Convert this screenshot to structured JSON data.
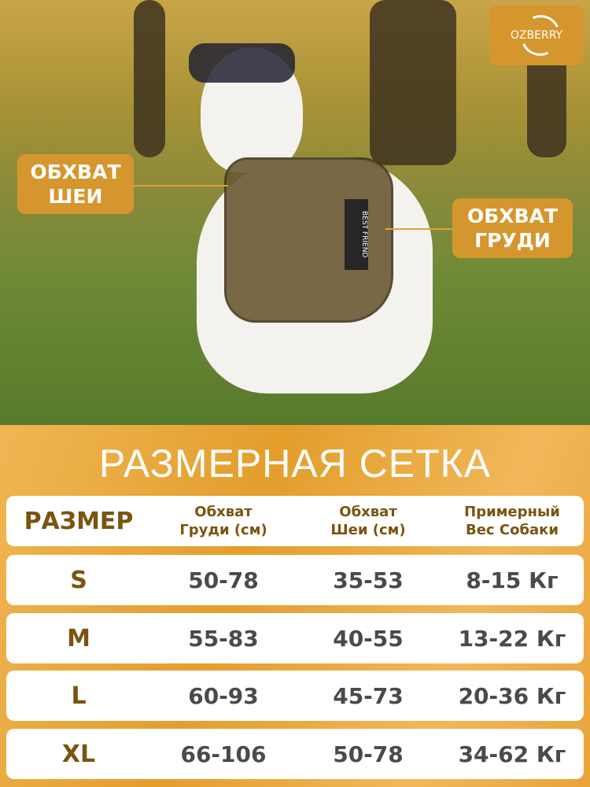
{
  "brand": {
    "logo_text": "OZBERRY",
    "accent": "#d5962e",
    "text_color": "#7a5410"
  },
  "photo": {
    "labels": {
      "neck": [
        "ОБХВАТ",
        "ШЕИ"
      ],
      "chest": [
        "ОБХВАТ",
        "ГРУДИ"
      ]
    },
    "harness_patch": "BEST FRIEND"
  },
  "title": "РАЗМЕРНАЯ СЕТКА",
  "table": {
    "headers": [
      "РАЗМЕР",
      [
        "Обхват",
        "Груди (см)"
      ],
      [
        "Обхват",
        "Шеи (см)"
      ],
      [
        "Примерный",
        "Вес Собаки"
      ]
    ],
    "rows": [
      [
        "S",
        "50-78",
        "35-53",
        "8-15 Кг"
      ],
      [
        "M",
        "55-83",
        "40-55",
        "13-22 Кг"
      ],
      [
        "L",
        "60-93",
        "45-73",
        "20-36 Кг"
      ],
      [
        "XL",
        "66-106",
        "50-78",
        "34-62 Кг"
      ]
    ]
  }
}
